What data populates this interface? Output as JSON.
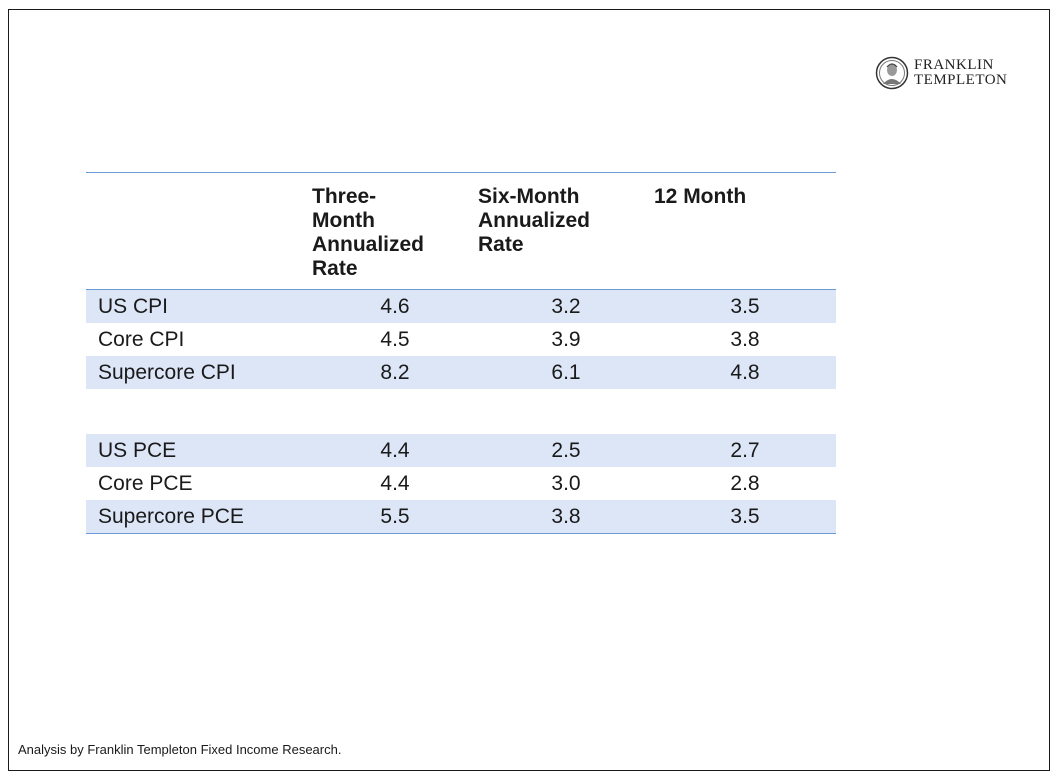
{
  "brand": {
    "line1": "FRANKLIN",
    "line2": "TEMPLETON",
    "icon": "franklin-portrait-seal-icon"
  },
  "table": {
    "headers": [
      "",
      "Three-\nMonth\nAnnualized\nRate",
      "Six-Month\nAnnualized\nRate",
      "12 Month"
    ],
    "rows": [
      [
        "US CPI",
        "4.6",
        "3.2",
        "3.5"
      ],
      [
        "Core CPI",
        "4.5",
        "3.9",
        "3.8"
      ],
      [
        "Supercore CPI",
        "8.2",
        "6.1",
        "4.8"
      ],
      [
        "US PCE",
        "4.4",
        "2.5",
        "2.7"
      ],
      [
        "Core PCE",
        "4.4",
        "3.0",
        "2.8"
      ],
      [
        "Supercore PCE",
        "5.5",
        "3.8",
        "3.5"
      ]
    ]
  },
  "colors": {
    "band": "#dce6f7",
    "rule": "#6a9bd6",
    "text": "#1a1a1a"
  },
  "footnote": "Analysis by Franklin Templeton Fixed Income Research."
}
